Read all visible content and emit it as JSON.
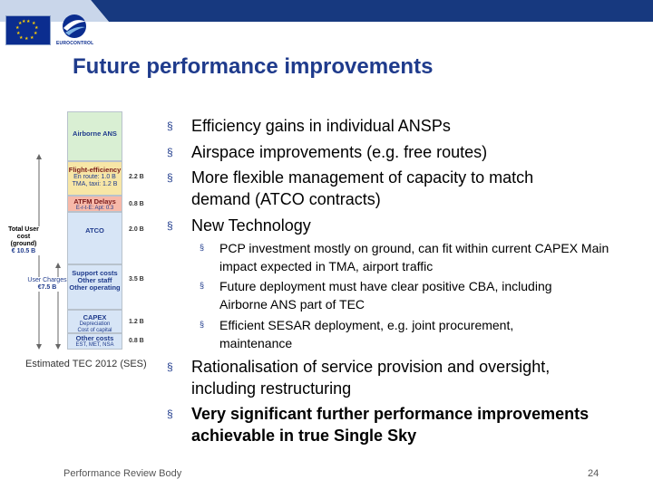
{
  "header": {
    "ec_label": "EUROCONTROL",
    "title": "Future performance improvements"
  },
  "chart": {
    "segments": [
      {
        "name": "airborne",
        "label": "Airborne ANS",
        "value": "",
        "color": "#d9efd3"
      },
      {
        "name": "flight-efficiency",
        "label": "Flight-efficiency",
        "sub1": "En route: 1.0 B",
        "sub2": "TMA, taxi: 1.2 B",
        "value": "2.2 B",
        "color": "#f7e6a6"
      },
      {
        "name": "atfm",
        "label": "ATFM Delays",
        "sub1": "E-r-t-E: Apt: 0.3",
        "value": "0.8 B",
        "color": "#f7b9a9"
      },
      {
        "name": "atco",
        "label": "ATCO",
        "value": "2.0 B",
        "color": "#d7e5f6"
      },
      {
        "name": "support",
        "label": "Support costs",
        "sub1": "Other staff",
        "sub2": "Other operating",
        "value": "3.5 B",
        "color": "#d7e5f6"
      },
      {
        "name": "capex",
        "label": "CAPEX",
        "sub1": "Depreciation",
        "sub2": "Cost of capital",
        "value": "1.2 B",
        "color": "#d7e5f6"
      },
      {
        "name": "other",
        "label": "Other costs",
        "sub1": "EST, MET, NSA",
        "value": "0.8 B",
        "color": "#d7e5f6"
      }
    ],
    "total_label": "Total User cost (ground)",
    "total_value": "€ 10.5 B",
    "charges_label": "User Charges",
    "charges_value": "€7.5 B",
    "caption": "Estimated TEC 2012 (SES)"
  },
  "bullets_main": [
    {
      "text": "Efficiency gains in individual ANSPs"
    },
    {
      "text": "Airspace improvements (e.g. free routes)"
    },
    {
      "text": "More flexible management of capacity to match demand (ATCO contracts)"
    },
    {
      "text": "New Technology"
    }
  ],
  "bullets_sub": [
    {
      "text": "PCP investment mostly on ground, can fit within current CAPEX Main impact expected in TMA, airport traffic"
    },
    {
      "text": "Future deployment must have clear positive CBA, including Airborne ANS part of TEC"
    },
    {
      "text": "Efficient SESAR deployment, e.g. joint procurement, maintenance"
    }
  ],
  "bullets_bottom": [
    {
      "text": "Rationalisation of service provision and oversight, including restructuring"
    },
    {
      "text": "Very significant further performance improvements achievable in true Single Sky"
    }
  ],
  "bullet_marker": "§",
  "footer": {
    "text": "Performance Review Body",
    "page": "24"
  },
  "colors": {
    "title": "#1f3b8c",
    "topbar": "#1a3c8c"
  }
}
